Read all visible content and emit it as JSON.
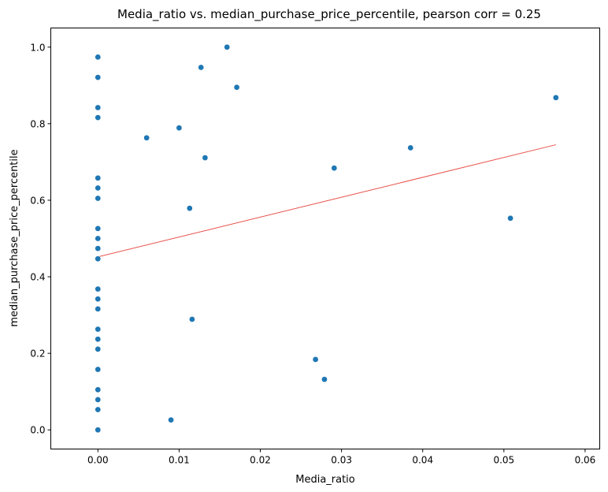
{
  "chart_data": {
    "type": "scatter",
    "title": "Media_ratio vs. median_purchase_price_percentile, pearson corr = 0.25",
    "xlabel": "Media_ratio",
    "ylabel": "median_purchase_price_percentile",
    "xlim": [
      -0.0058,
      0.0618
    ],
    "ylim": [
      -0.05,
      1.05
    ],
    "xticks": [
      "0.00",
      "0.01",
      "0.02",
      "0.03",
      "0.04",
      "0.05",
      "0.06"
    ],
    "xtick_values": [
      0.0,
      0.01,
      0.02,
      0.03,
      0.04,
      0.05,
      0.06
    ],
    "yticks": [
      "0.0",
      "0.2",
      "0.4",
      "0.6",
      "0.8",
      "1.0"
    ],
    "ytick_values": [
      0.0,
      0.2,
      0.4,
      0.6,
      0.8,
      1.0
    ],
    "grid": false,
    "point_color": "#1f77b4",
    "trend_color": "#e8504a",
    "points": [
      {
        "x": 0.0,
        "y": 0.974
      },
      {
        "x": 0.0,
        "y": 0.921
      },
      {
        "x": 0.0,
        "y": 0.842
      },
      {
        "x": 0.0,
        "y": 0.816
      },
      {
        "x": 0.0,
        "y": 0.658
      },
      {
        "x": 0.0,
        "y": 0.632
      },
      {
        "x": 0.0,
        "y": 0.605
      },
      {
        "x": 0.0,
        "y": 0.526
      },
      {
        "x": 0.0,
        "y": 0.5
      },
      {
        "x": 0.0,
        "y": 0.474
      },
      {
        "x": 0.0,
        "y": 0.447
      },
      {
        "x": 0.0,
        "y": 0.368
      },
      {
        "x": 0.0,
        "y": 0.342
      },
      {
        "x": 0.0,
        "y": 0.316
      },
      {
        "x": 0.0,
        "y": 0.263
      },
      {
        "x": 0.0,
        "y": 0.237
      },
      {
        "x": 0.0,
        "y": 0.211
      },
      {
        "x": 0.0,
        "y": 0.158
      },
      {
        "x": 0.0,
        "y": 0.105
      },
      {
        "x": 0.0,
        "y": 0.079
      },
      {
        "x": 0.0,
        "y": 0.053
      },
      {
        "x": 0.0,
        "y": 0.0
      },
      {
        "x": 0.006,
        "y": 0.763
      },
      {
        "x": 0.009,
        "y": 0.026
      },
      {
        "x": 0.01,
        "y": 0.789
      },
      {
        "x": 0.0113,
        "y": 0.579
      },
      {
        "x": 0.0116,
        "y": 0.289
      },
      {
        "x": 0.0127,
        "y": 0.947
      },
      {
        "x": 0.0132,
        "y": 0.711
      },
      {
        "x": 0.0159,
        "y": 1.0
      },
      {
        "x": 0.0171,
        "y": 0.895
      },
      {
        "x": 0.0268,
        "y": 0.184
      },
      {
        "x": 0.0279,
        "y": 0.132
      },
      {
        "x": 0.0291,
        "y": 0.684
      },
      {
        "x": 0.0385,
        "y": 0.737
      },
      {
        "x": 0.0508,
        "y": 0.553
      },
      {
        "x": 0.0564,
        "y": 0.868
      }
    ],
    "trend_line": {
      "x": [
        0.0,
        0.0564
      ],
      "y": [
        0.452,
        0.745
      ]
    }
  }
}
